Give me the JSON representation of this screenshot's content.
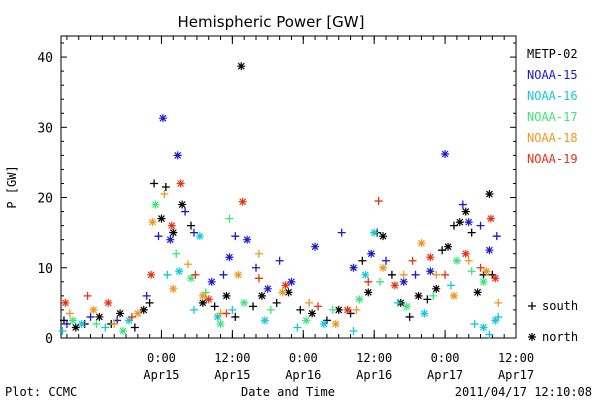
{
  "chart_data": {
    "type": "scatter",
    "title": "Hemispheric Power [GW]",
    "ylabel": "P [GW]",
    "xlabel": "Date and Time",
    "xlim": [
      "2011-04-14T07:00",
      "2011-04-17T12:00"
    ],
    "ylim": [
      0,
      43
    ],
    "yticks": [
      0,
      10,
      20,
      30,
      40
    ],
    "ytick_labels": [
      "0",
      "10",
      "20",
      "30",
      "40"
    ],
    "xticks": [
      {
        "t": "2011-04-15T00:00",
        "time": "0:00",
        "date": "Apr15"
      },
      {
        "t": "2011-04-15T12:00",
        "time": "12:00",
        "date": "Apr15"
      },
      {
        "t": "2011-04-16T00:00",
        "time": "0:00",
        "date": "Apr16"
      },
      {
        "t": "2011-04-16T12:00",
        "time": "12:00",
        "date": "Apr16"
      },
      {
        "t": "2011-04-17T00:00",
        "time": "0:00",
        "date": "Apr17"
      },
      {
        "t": "2011-04-17T12:00",
        "time": "12:00",
        "date": "Apr17"
      }
    ],
    "grid": false,
    "legend_placement": "right",
    "series": [
      {
        "name": "METP-02",
        "color": "#000000",
        "points": [
          [
            "2011-04-14T07:30",
            2.5,
            "s"
          ],
          [
            "2011-04-14T09:30",
            1.5,
            "n"
          ],
          [
            "2011-04-14T11:00",
            2.0,
            "s"
          ],
          [
            "2011-04-14T13:30",
            3.0,
            "n"
          ],
          [
            "2011-04-14T15:30",
            2.0,
            "s"
          ],
          [
            "2011-04-14T17:00",
            3.5,
            "n"
          ],
          [
            "2011-04-14T19:30",
            1.5,
            "s"
          ],
          [
            "2011-04-14T21:00",
            4.0,
            "n"
          ],
          [
            "2011-04-14T22:00",
            5.0,
            "s"
          ],
          [
            "2011-04-14T22:45",
            22.0,
            "s"
          ],
          [
            "2011-04-15T00:00",
            17.0,
            "n"
          ],
          [
            "2011-04-15T00:45",
            21.5,
            "s"
          ],
          [
            "2011-04-15T02:00",
            15.0,
            "n"
          ],
          [
            "2011-04-15T03:30",
            19.0,
            "n"
          ],
          [
            "2011-04-15T05:00",
            16.0,
            "s"
          ],
          [
            "2011-04-15T07:00",
            5.0,
            "n"
          ],
          [
            "2011-04-15T09:00",
            4.5,
            "s"
          ],
          [
            "2011-04-15T11:00",
            6.0,
            "n"
          ],
          [
            "2011-04-15T12:30",
            3.0,
            "s"
          ],
          [
            "2011-04-15T13:30",
            38.7,
            "n"
          ],
          [
            "2011-04-15T15:30",
            4.5,
            "s"
          ],
          [
            "2011-04-15T17:00",
            6.0,
            "n"
          ],
          [
            "2011-04-15T19:30",
            5.0,
            "s"
          ],
          [
            "2011-04-15T21:30",
            6.5,
            "n"
          ],
          [
            "2011-04-15T23:30",
            4.0,
            "s"
          ],
          [
            "2011-04-16T01:30",
            3.5,
            "n"
          ],
          [
            "2011-04-16T04:00",
            2.5,
            "s"
          ],
          [
            "2011-04-16T06:00",
            4.0,
            "n"
          ],
          [
            "2011-04-16T08:00",
            3.5,
            "s"
          ],
          [
            "2011-04-16T10:00",
            11.0,
            "s"
          ],
          [
            "2011-04-16T11:00",
            6.5,
            "n"
          ],
          [
            "2011-04-16T12:30",
            15.0,
            "s"
          ],
          [
            "2011-04-16T13:30",
            14.5,
            "n"
          ],
          [
            "2011-04-16T15:00",
            9.0,
            "s"
          ],
          [
            "2011-04-16T16:30",
            5.0,
            "n"
          ],
          [
            "2011-04-16T18:00",
            3.0,
            "s"
          ],
          [
            "2011-04-16T19:30",
            6.0,
            "n"
          ],
          [
            "2011-04-16T21:00",
            5.5,
            "s"
          ],
          [
            "2011-04-16T22:30",
            7.0,
            "n"
          ],
          [
            "2011-04-16T23:30",
            12.5,
            "s"
          ],
          [
            "2011-04-17T00:30",
            13.0,
            "n"
          ],
          [
            "2011-04-17T01:30",
            16.0,
            "s"
          ],
          [
            "2011-04-17T02:30",
            16.5,
            "n"
          ],
          [
            "2011-04-17T03:30",
            18.0,
            "n"
          ],
          [
            "2011-04-17T04:30",
            15.0,
            "s"
          ],
          [
            "2011-04-17T05:30",
            6.5,
            "n"
          ],
          [
            "2011-04-17T06:30",
            9.0,
            "s"
          ],
          [
            "2011-04-17T07:30",
            20.5,
            "n"
          ],
          [
            "2011-04-17T08:00",
            9.0,
            "s"
          ]
        ]
      },
      {
        "name": "NOAA-15",
        "color": "#1a1acc",
        "points": [
          [
            "2011-04-14T08:00",
            2.0,
            "s"
          ],
          [
            "2011-04-14T12:00",
            3.0,
            "s"
          ],
          [
            "2011-04-14T16:30",
            2.5,
            "s"
          ],
          [
            "2011-04-14T21:30",
            6.0,
            "s"
          ],
          [
            "2011-04-14T23:30",
            14.5,
            "s"
          ],
          [
            "2011-04-15T00:15",
            31.3,
            "n"
          ],
          [
            "2011-04-15T01:30",
            14.0,
            "n"
          ],
          [
            "2011-04-15T02:45",
            26.0,
            "n"
          ],
          [
            "2011-04-15T04:00",
            18.0,
            "s"
          ],
          [
            "2011-04-15T05:30",
            15.0,
            "s"
          ],
          [
            "2011-04-15T08:30",
            8.0,
            "n"
          ],
          [
            "2011-04-15T10:30",
            9.0,
            "s"
          ],
          [
            "2011-04-15T11:30",
            11.5,
            "n"
          ],
          [
            "2011-04-15T12:30",
            14.5,
            "s"
          ],
          [
            "2011-04-15T14:30",
            14.0,
            "n"
          ],
          [
            "2011-04-15T16:00",
            10.0,
            "s"
          ],
          [
            "2011-04-15T18:00",
            7.0,
            "n"
          ],
          [
            "2011-04-15T20:00",
            11.0,
            "s"
          ],
          [
            "2011-04-15T22:00",
            8.0,
            "n"
          ],
          [
            "2011-04-16T02:00",
            13.0,
            "n"
          ],
          [
            "2011-04-16T06:30",
            15.0,
            "s"
          ],
          [
            "2011-04-16T08:30",
            10.0,
            "n"
          ],
          [
            "2011-04-16T11:30",
            12.0,
            "n"
          ],
          [
            "2011-04-16T14:00",
            11.0,
            "s"
          ],
          [
            "2011-04-16T17:00",
            8.0,
            "n"
          ],
          [
            "2011-04-16T19:00",
            9.0,
            "s"
          ],
          [
            "2011-04-16T21:30",
            9.5,
            "n"
          ],
          [
            "2011-04-17T00:00",
            26.2,
            "n"
          ],
          [
            "2011-04-17T03:00",
            19.0,
            "s"
          ],
          [
            "2011-04-17T04:00",
            16.5,
            "n"
          ],
          [
            "2011-04-17T06:00",
            16.0,
            "s"
          ],
          [
            "2011-04-17T07:30",
            12.5,
            "n"
          ],
          [
            "2011-04-17T08:45",
            14.5,
            "s"
          ]
        ]
      },
      {
        "name": "NOAA-16",
        "color": "#14c8dc",
        "points": [
          [
            "2011-04-14T07:15",
            1.0,
            "s"
          ],
          [
            "2011-04-14T10:30",
            2.0,
            "n"
          ],
          [
            "2011-04-14T14:30",
            1.5,
            "s"
          ],
          [
            "2011-04-14T18:30",
            2.5,
            "n"
          ],
          [
            "2011-04-15T01:00",
            9.0,
            "s"
          ],
          [
            "2011-04-15T03:00",
            9.5,
            "n"
          ],
          [
            "2011-04-15T05:30",
            4.0,
            "s"
          ],
          [
            "2011-04-15T06:30",
            14.5,
            "n"
          ],
          [
            "2011-04-15T09:30",
            3.0,
            "n"
          ],
          [
            "2011-04-15T12:00",
            4.0,
            "s"
          ],
          [
            "2011-04-15T17:30",
            2.5,
            "n"
          ],
          [
            "2011-04-15T23:00",
            1.5,
            "s"
          ],
          [
            "2011-04-16T03:30",
            2.0,
            "n"
          ],
          [
            "2011-04-16T08:30",
            1.0,
            "s"
          ],
          [
            "2011-04-16T10:30",
            9.0,
            "n"
          ],
          [
            "2011-04-16T12:00",
            15.0,
            "n"
          ],
          [
            "2011-04-16T16:00",
            5.0,
            "s"
          ],
          [
            "2011-04-16T20:30",
            3.5,
            "n"
          ],
          [
            "2011-04-17T01:00",
            7.5,
            "s"
          ],
          [
            "2011-04-17T05:00",
            2.0,
            "s"
          ],
          [
            "2011-04-17T06:30",
            1.5,
            "n"
          ],
          [
            "2011-04-17T07:30",
            0.5,
            "s"
          ],
          [
            "2011-04-17T08:30",
            2.5,
            "n"
          ],
          [
            "2011-04-17T09:00",
            3.0,
            "s"
          ]
        ]
      },
      {
        "name": "NOAA-17",
        "color": "#3ce678",
        "points": [
          [
            "2011-04-14T09:00",
            2.5,
            "n"
          ],
          [
            "2011-04-14T13:00",
            2.0,
            "s"
          ],
          [
            "2011-04-14T17:30",
            1.0,
            "n"
          ],
          [
            "2011-04-14T23:00",
            19.0,
            "n"
          ],
          [
            "2011-04-15T02:30",
            12.0,
            "s"
          ],
          [
            "2011-04-15T05:00",
            8.5,
            "n"
          ],
          [
            "2011-04-15T07:30",
            6.5,
            "s"
          ],
          [
            "2011-04-15T10:00",
            2.0,
            "n"
          ],
          [
            "2011-04-15T11:30",
            17.0,
            "s"
          ],
          [
            "2011-04-15T14:00",
            5.0,
            "n"
          ],
          [
            "2011-04-15T18:30",
            4.0,
            "s"
          ],
          [
            "2011-04-16T00:30",
            2.5,
            "n"
          ],
          [
            "2011-04-16T05:00",
            4.0,
            "s"
          ],
          [
            "2011-04-16T09:30",
            5.5,
            "n"
          ],
          [
            "2011-04-16T13:00",
            8.0,
            "s"
          ],
          [
            "2011-04-16T17:30",
            4.5,
            "n"
          ],
          [
            "2011-04-16T22:00",
            6.0,
            "s"
          ],
          [
            "2011-04-17T02:00",
            11.0,
            "n"
          ],
          [
            "2011-04-17T04:30",
            9.5,
            "s"
          ],
          [
            "2011-04-17T06:30",
            8.0,
            "n"
          ]
        ]
      },
      {
        "name": "NOAA-18",
        "color": "#f0961e",
        "points": [
          [
            "2011-04-14T08:30",
            3.5,
            "s"
          ],
          [
            "2011-04-14T12:30",
            4.0,
            "n"
          ],
          [
            "2011-04-14T16:00",
            2.0,
            "s"
          ],
          [
            "2011-04-14T20:00",
            3.5,
            "n"
          ],
          [
            "2011-04-14T22:30",
            16.5,
            "n"
          ],
          [
            "2011-04-15T00:30",
            20.5,
            "s"
          ],
          [
            "2011-04-15T02:00",
            7.0,
            "n"
          ],
          [
            "2011-04-15T04:30",
            10.5,
            "s"
          ],
          [
            "2011-04-15T07:00",
            6.0,
            "n"
          ],
          [
            "2011-04-15T10:00",
            3.5,
            "s"
          ],
          [
            "2011-04-15T13:00",
            9.0,
            "n"
          ],
          [
            "2011-04-15T16:30",
            12.0,
            "s"
          ],
          [
            "2011-04-15T20:30",
            6.5,
            "n"
          ],
          [
            "2011-04-16T01:00",
            5.0,
            "s"
          ],
          [
            "2011-04-16T05:30",
            2.0,
            "n"
          ],
          [
            "2011-04-16T09:00",
            4.0,
            "s"
          ],
          [
            "2011-04-16T13:30",
            10.0,
            "n"
          ],
          [
            "2011-04-16T17:00",
            9.0,
            "s"
          ],
          [
            "2011-04-16T20:00",
            13.5,
            "n"
          ],
          [
            "2011-04-16T22:30",
            9.0,
            "s"
          ],
          [
            "2011-04-17T01:30",
            6.0,
            "n"
          ],
          [
            "2011-04-17T04:00",
            11.0,
            "s"
          ],
          [
            "2011-04-17T07:00",
            9.5,
            "n"
          ],
          [
            "2011-04-17T09:00",
            5.0,
            "s"
          ]
        ]
      },
      {
        "name": "NOAA-19",
        "color": "#e63214",
        "points": [
          [
            "2011-04-14T07:45",
            5.0,
            "n"
          ],
          [
            "2011-04-14T11:30",
            6.0,
            "s"
          ],
          [
            "2011-04-14T15:00",
            5.0,
            "n"
          ],
          [
            "2011-04-14T19:00",
            3.0,
            "s"
          ],
          [
            "2011-04-14T22:15",
            9.0,
            "n"
          ],
          [
            "2011-04-15T01:45",
            16.0,
            "n"
          ],
          [
            "2011-04-15T03:15",
            22.0,
            "n"
          ],
          [
            "2011-04-15T05:45",
            9.0,
            "s"
          ],
          [
            "2011-04-15T08:00",
            5.5,
            "n"
          ],
          [
            "2011-04-15T11:00",
            3.5,
            "s"
          ],
          [
            "2011-04-15T13:45",
            19.4,
            "n"
          ],
          [
            "2011-04-15T16:30",
            8.5,
            "s"
          ],
          [
            "2011-04-15T21:00",
            7.5,
            "n"
          ],
          [
            "2011-04-16T02:30",
            4.5,
            "s"
          ],
          [
            "2011-04-16T07:30",
            4.0,
            "n"
          ],
          [
            "2011-04-16T11:00",
            8.0,
            "s"
          ],
          [
            "2011-04-16T12:45",
            19.5,
            "s"
          ],
          [
            "2011-04-16T15:30",
            7.5,
            "n"
          ],
          [
            "2011-04-16T18:30",
            11.0,
            "s"
          ],
          [
            "2011-04-16T21:30",
            11.5,
            "n"
          ],
          [
            "2011-04-17T00:00",
            9.0,
            "s"
          ],
          [
            "2011-04-17T03:30",
            12.0,
            "n"
          ],
          [
            "2011-04-17T06:00",
            10.0,
            "s"
          ],
          [
            "2011-04-17T07:45",
            17.0,
            "n"
          ],
          [
            "2011-04-17T08:30",
            8.5,
            "n"
          ]
        ]
      }
    ],
    "marker_legend": [
      {
        "symbol": "+",
        "label": "south",
        "key": "s"
      },
      {
        "symbol": "*",
        "label": "north",
        "key": "n"
      }
    ]
  },
  "footer": {
    "left": "Plot: CCMC",
    "center": "Date and Time",
    "right": "2011/04/17 12:10:08"
  }
}
